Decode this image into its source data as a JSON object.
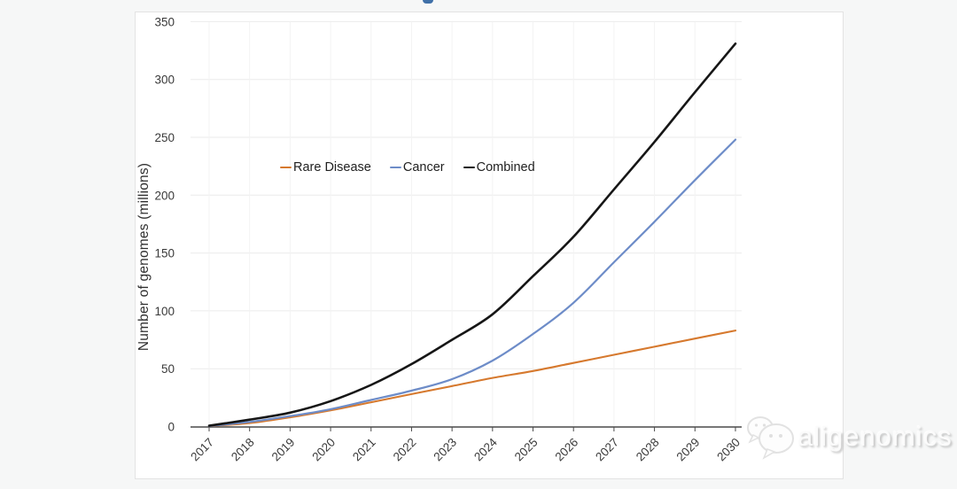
{
  "chart_data": {
    "type": "line",
    "title": "",
    "xlabel": "",
    "ylabel": "Number of genomes (millions)",
    "x": [
      2017,
      2018,
      2019,
      2020,
      2021,
      2022,
      2023,
      2024,
      2025,
      2026,
      2027,
      2028,
      2029,
      2030
    ],
    "series": [
      {
        "name": "Rare Disease",
        "color": "#d6792e",
        "width": 2.1,
        "values": [
          0.3,
          3,
          8,
          14,
          21,
          28,
          35,
          42,
          48,
          55,
          62,
          69,
          76,
          83
        ]
      },
      {
        "name": "Cancer",
        "color": "#6d8cc8",
        "width": 2.2,
        "values": [
          0.4,
          4,
          9,
          15,
          23,
          31,
          41,
          57,
          80,
          107,
          142,
          177,
          213,
          248
        ]
      },
      {
        "name": "Combined",
        "color": "#161616",
        "width": 2.6,
        "values": [
          0.7,
          6,
          12,
          22,
          36,
          54,
          75,
          97,
          130,
          164,
          205,
          246,
          289,
          331
        ]
      }
    ],
    "ylim": [
      0,
      350
    ],
    "yticks": [
      0,
      50,
      100,
      150,
      200,
      250,
      300,
      350
    ],
    "grid": true,
    "legend_position": "inside-left-middle"
  },
  "colors": {
    "axis": "#4a4a4a",
    "h_gridline": "#ebebeb",
    "v_gridline": "#f3f3f3",
    "tick_label": "#3a3a3a",
    "card_border": "#e3e3e3",
    "title_fragment_blue": "#3f70a8"
  },
  "watermark": {
    "text": "aligenomics",
    "icon": "wechat-icon"
  }
}
